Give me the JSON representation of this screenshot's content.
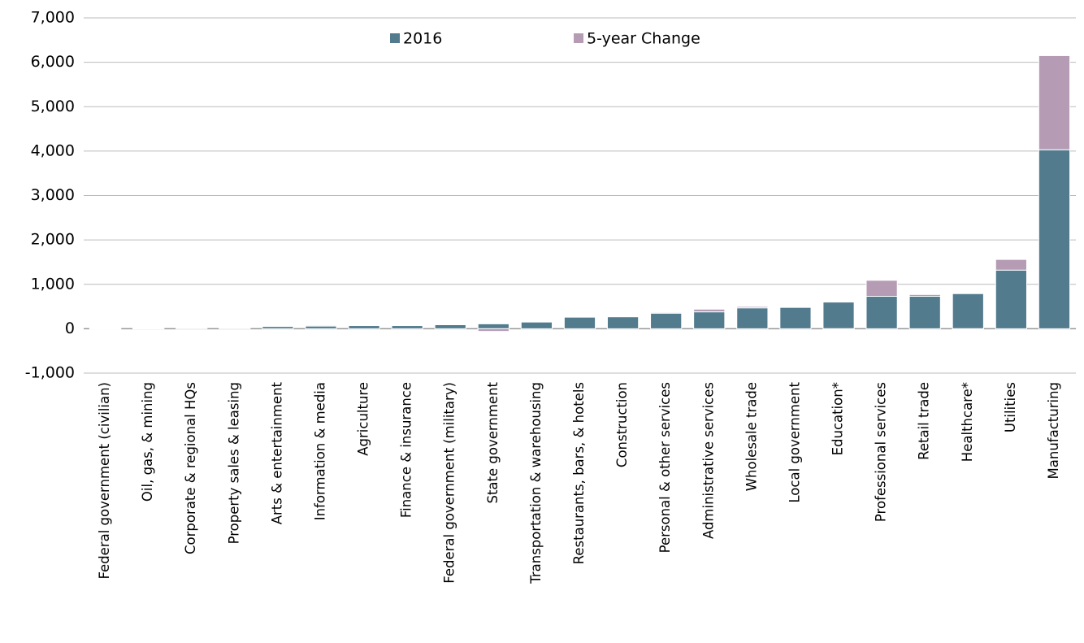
{
  "chart_data": {
    "type": "stacked_bar",
    "categories": [
      "Federal government (civilian)",
      "Oil, gas, & mining",
      "Corporate & regional HQs",
      "Property sales & leasing",
      "Arts & entertainment",
      "Information & media",
      "Agriculture",
      "Finance & insurance",
      "Federal government (military)",
      "State government",
      "Transportation & warehousing",
      "Restaurants, bars, & hotels",
      "Construction",
      "Personal & other services",
      "Administrative services",
      "Wholesale trade",
      "Local government",
      "Education*",
      "Professional services",
      "Retail trade",
      "Healthcare*",
      "Utilities",
      "Manufacturing"
    ],
    "series": [
      {
        "name": "2016",
        "color": "#527b8e",
        "values": [
          10,
          10,
          15,
          15,
          50,
          60,
          70,
          70,
          90,
          110,
          150,
          260,
          270,
          350,
          380,
          470,
          480,
          600,
          730,
          730,
          790,
          1320,
          4030
        ]
      },
      {
        "name": "5-year Change",
        "color": "#b69bb5",
        "values": [
          -10,
          -5,
          0,
          0,
          0,
          20,
          0,
          0,
          10,
          -60,
          0,
          0,
          10,
          20,
          60,
          30,
          0,
          -20,
          360,
          40,
          -20,
          240,
          2120
        ]
      }
    ],
    "ylim": [
      -1000,
      7000
    ],
    "yticks": [
      {
        "value": -1000,
        "label": "-1,000"
      },
      0,
      {
        "value": 1000,
        "label": "1,000"
      },
      {
        "value": 2000,
        "label": "2,000"
      },
      {
        "value": 3000,
        "label": "3,000"
      },
      {
        "value": 4000,
        "label": "4,000"
      },
      {
        "value": 5000,
        "label": "5,000"
      },
      {
        "value": 6000,
        "label": "6,000"
      },
      {
        "value": 7000,
        "label": "7,000"
      }
    ],
    "grid": true,
    "legend": "top"
  }
}
